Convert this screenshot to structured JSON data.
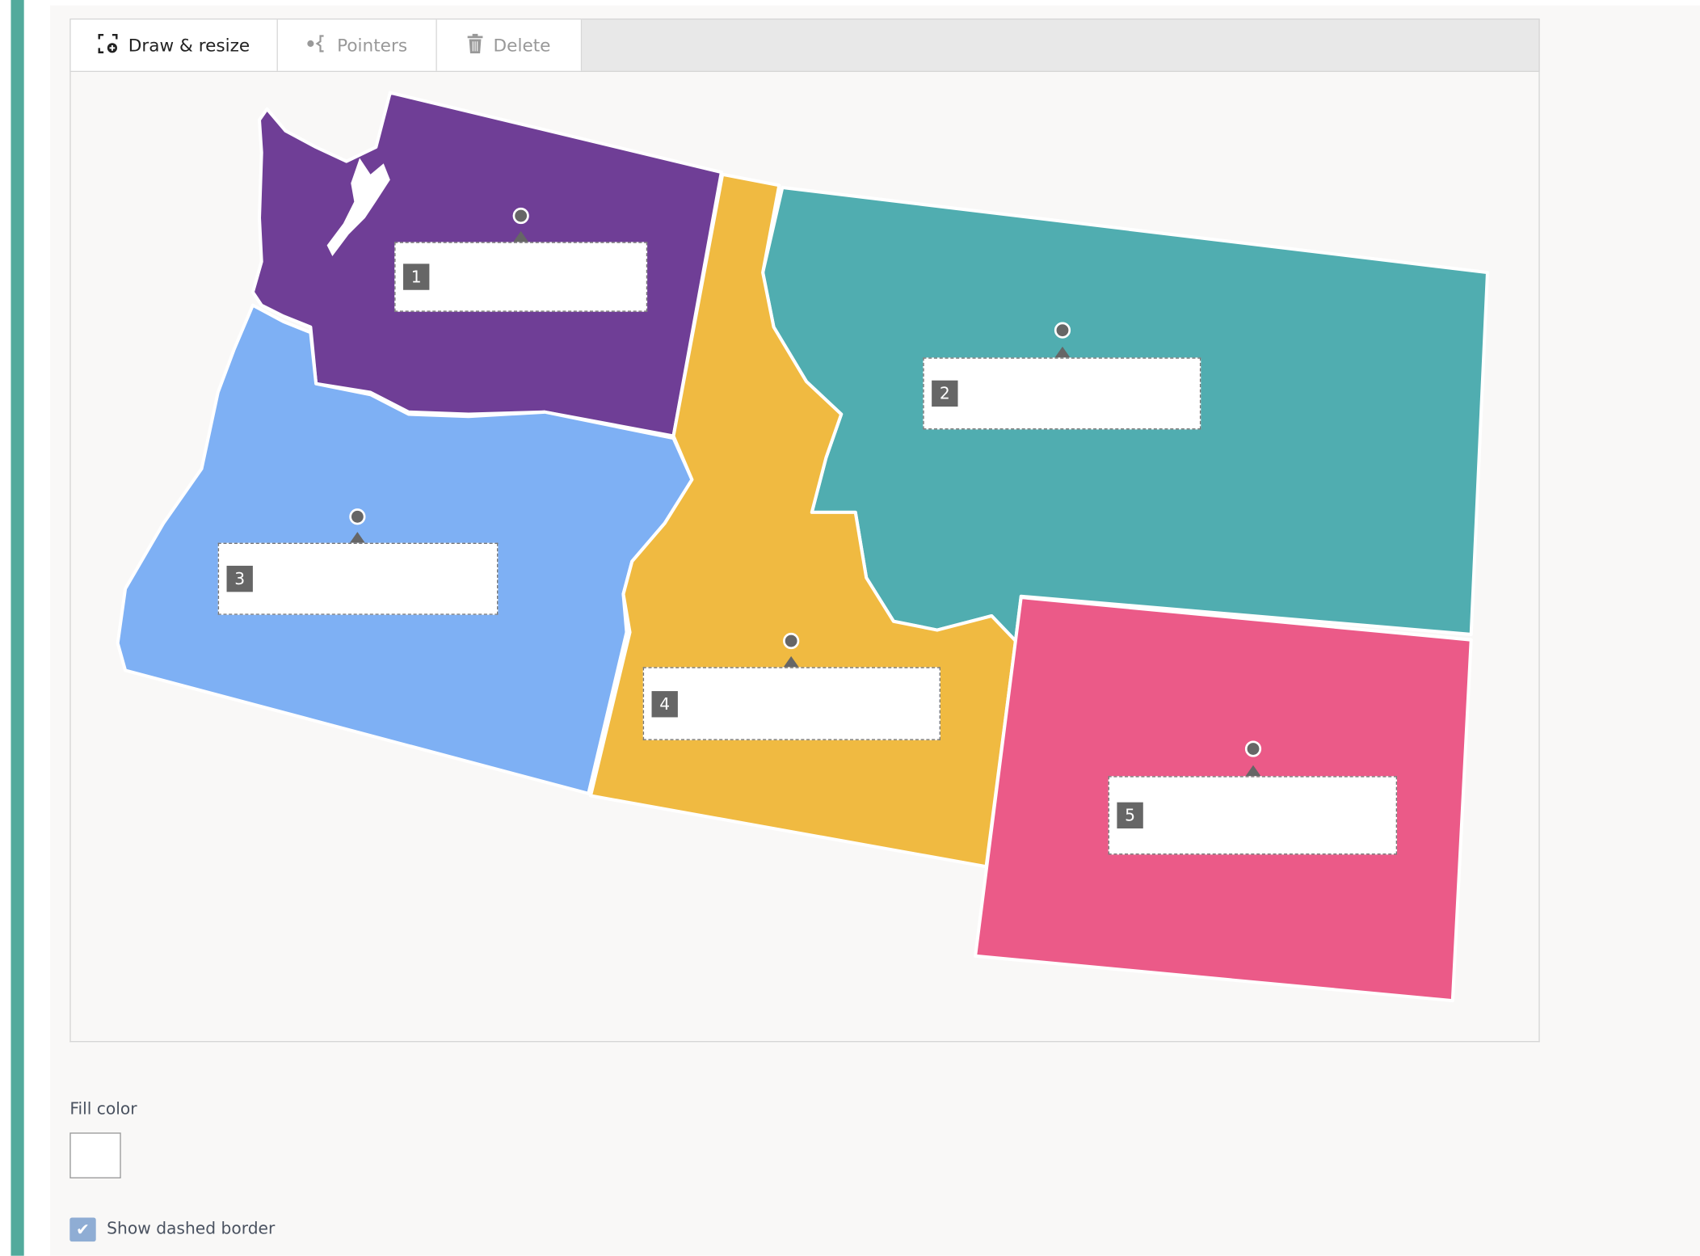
{
  "toolbar": {
    "draw_label": "Draw & resize",
    "pointers_label": "Pointers",
    "delete_label": "Delete"
  },
  "map": {
    "regions": [
      {
        "name": "washington",
        "color": "#6f3e96"
      },
      {
        "name": "montana",
        "color": "#50adb0"
      },
      {
        "name": "oregon",
        "color": "#7eb0f4"
      },
      {
        "name": "idaho",
        "color": "#f0ba41"
      },
      {
        "name": "wyoming",
        "color": "#eb5a88"
      }
    ],
    "labels": [
      {
        "number": "1",
        "value": ""
      },
      {
        "number": "2",
        "value": ""
      },
      {
        "number": "3",
        "value": ""
      },
      {
        "number": "4",
        "value": ""
      },
      {
        "number": "5",
        "value": ""
      }
    ]
  },
  "options": {
    "fill_color_label": "Fill color",
    "fill_color": "#ffffff",
    "dashed_border_label": "Show dashed border",
    "dashed_border_checked": true
  }
}
